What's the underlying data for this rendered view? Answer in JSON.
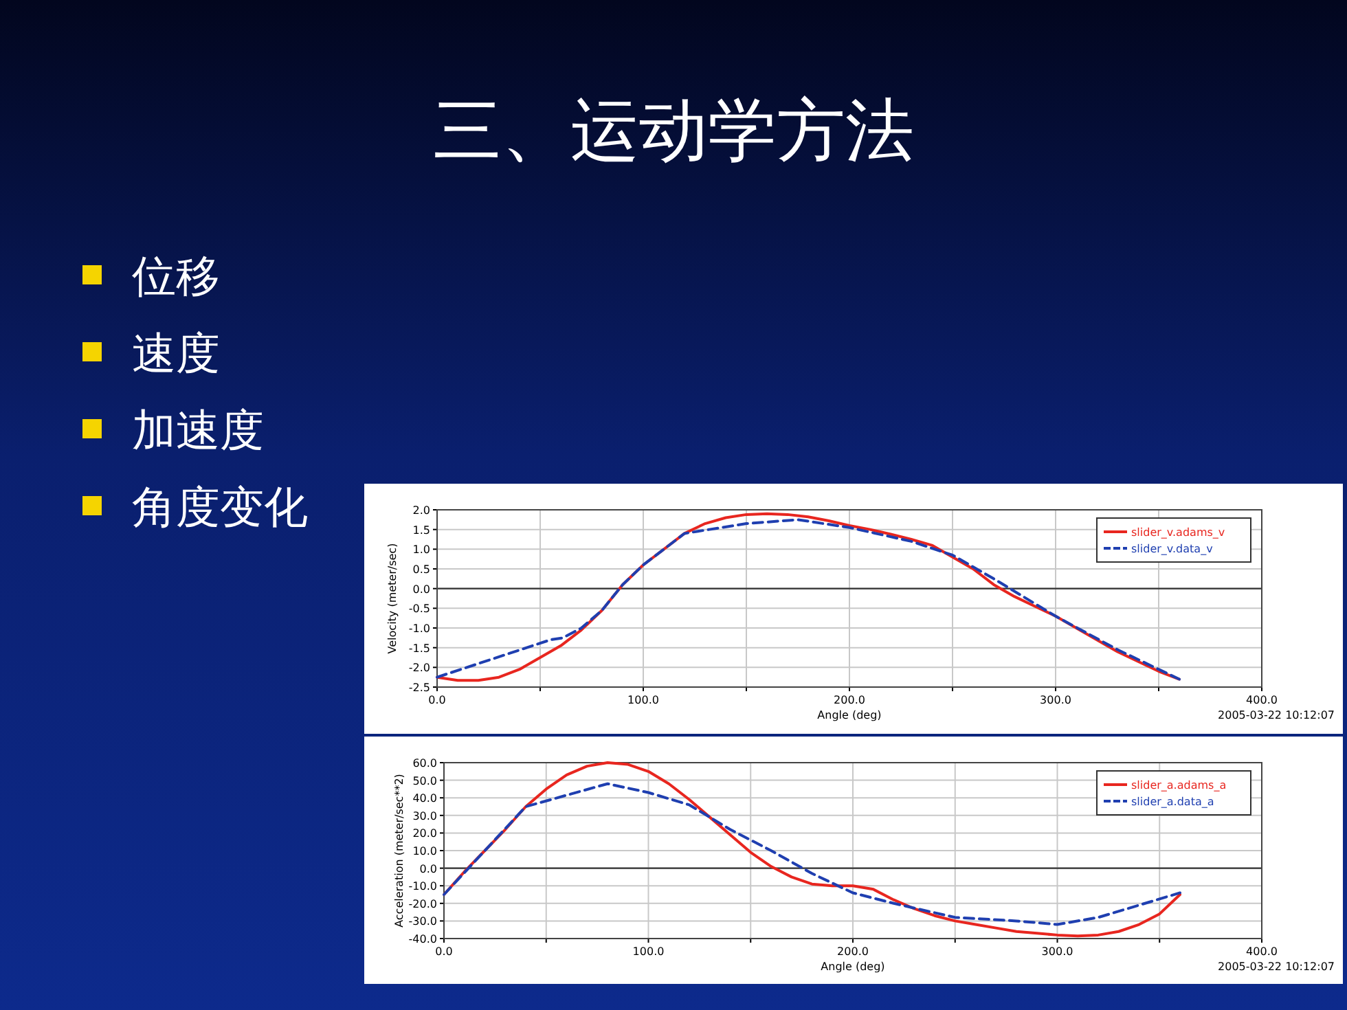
{
  "chart_data": [
    {
      "type": "other",
      "title": "三、运动学方法",
      "annotations": [
        "位移",
        "速度",
        "加速度",
        "角度变化"
      ]
    },
    {
      "type": "line",
      "xlabel": "Angle (deg)",
      "ylabel": "Velocity (meter/sec)",
      "annotations": [
        "2005-03-22 10:12:07"
      ],
      "x": [
        0,
        10,
        20,
        30,
        40,
        50,
        60,
        70,
        80,
        90,
        100,
        110,
        120,
        130,
        140,
        150,
        160,
        170,
        180,
        190,
        200,
        210,
        220,
        230,
        240,
        250,
        260,
        270,
        280,
        290,
        300,
        310,
        320,
        330,
        340,
        350,
        360
      ],
      "series": [
        {
          "name": "slider_v.adams_v",
          "color": "#e8261f",
          "line_style": "solid",
          "values": [
            -2.25,
            -2.33,
            -2.33,
            -2.25,
            -2.05,
            -1.75,
            -1.45,
            -1.05,
            -0.55,
            0.1,
            0.6,
            1.0,
            1.4,
            1.65,
            1.8,
            1.88,
            1.9,
            1.88,
            1.82,
            1.72,
            1.6,
            1.5,
            1.38,
            1.25,
            1.1,
            0.8,
            0.5,
            0.1,
            -0.2,
            -0.45,
            -0.7,
            -1.0,
            -1.3,
            -1.6,
            -1.85,
            -2.1,
            -2.3
          ]
        },
        {
          "name": "slider_v.data_v",
          "color": "#1f3fb0",
          "line_style": "dashed",
          "x": [
            0,
            55,
            61,
            70,
            80,
            90,
            100,
            110,
            120,
            150,
            175,
            200,
            230,
            250,
            270,
            300,
            330,
            360
          ],
          "values": [
            -2.25,
            -1.3,
            -1.25,
            -1.0,
            -0.55,
            0.1,
            0.6,
            1.0,
            1.4,
            1.65,
            1.75,
            1.55,
            1.2,
            0.85,
            0.25,
            -0.7,
            -1.55,
            -2.3
          ]
        }
      ],
      "xlim": [
        0,
        400
      ],
      "ylim": [
        -2.5,
        2
      ],
      "xticks": [
        {
          "value": 0,
          "label": "0.0"
        },
        {
          "value": 50,
          "label": null
        },
        {
          "value": 100,
          "label": "100.0"
        },
        {
          "value": 150,
          "label": null
        },
        {
          "value": 200,
          "label": "200.0"
        },
        {
          "value": 250,
          "label": null
        },
        {
          "value": 300,
          "label": "300.0"
        },
        {
          "value": 350,
          "label": null
        },
        {
          "value": 400,
          "label": "400.0"
        }
      ],
      "yticks": [
        {
          "value": 2,
          "label": "2.0"
        },
        {
          "value": 1.5,
          "label": "1.5"
        },
        {
          "value": 1,
          "label": "1.0"
        },
        {
          "value": 0.5,
          "label": "0.5"
        },
        {
          "value": 0,
          "label": "0.0"
        },
        {
          "value": -0.5,
          "label": "-0.5"
        },
        {
          "value": -1,
          "label": "-1.0"
        },
        {
          "value": -1.5,
          "label": "-1.5"
        },
        {
          "value": -2,
          "label": "-2.0"
        },
        {
          "value": -2.5,
          "label": "-2.5"
        }
      ],
      "grid": true,
      "legend": "top right",
      "ref_lines": [
        {
          "axis": "y",
          "value": 0,
          "color": "#333333"
        }
      ]
    },
    {
      "type": "line",
      "xlabel": "Angle (deg)",
      "ylabel": "Acceleration (meter/sec**2)",
      "annotations": [
        "2005-03-22 10:12:07"
      ],
      "x": [
        0,
        10,
        20,
        30,
        40,
        50,
        60,
        70,
        80,
        90,
        100,
        110,
        120,
        130,
        140,
        150,
        160,
        170,
        180,
        190,
        200,
        210,
        220,
        230,
        240,
        250,
        260,
        270,
        280,
        290,
        300,
        310,
        320,
        330,
        340,
        350,
        360
      ],
      "series": [
        {
          "name": "slider_a.adams_a",
          "color": "#e8261f",
          "line_style": "solid",
          "values": [
            -15,
            -2,
            10,
            22,
            35,
            45,
            53,
            58,
            60,
            59,
            55,
            48,
            39,
            29,
            19,
            9,
            1,
            -5,
            -9,
            -10,
            -10,
            -12,
            -18,
            -23,
            -27,
            -30,
            -32,
            -34,
            -36,
            -37,
            -38,
            -38.5,
            -38,
            -36,
            -32,
            -26,
            -15
          ]
        },
        {
          "name": "slider_a.data_a",
          "color": "#1f3fb0",
          "line_style": "dashed",
          "x": [
            0,
            20,
            40,
            80,
            100,
            120,
            140,
            160,
            180,
            200,
            220,
            250,
            280,
            300,
            320,
            340,
            360
          ],
          "values": [
            -15,
            10,
            35,
            48,
            43,
            36,
            22,
            10,
            -3,
            -14,
            -20,
            -28,
            -30,
            -32,
            -28,
            -21,
            -14
          ]
        }
      ],
      "xlim": [
        0,
        400
      ],
      "ylim": [
        -40,
        60
      ],
      "xticks": [
        {
          "value": 0,
          "label": "0.0"
        },
        {
          "value": 50,
          "label": null
        },
        {
          "value": 100,
          "label": "100.0"
        },
        {
          "value": 150,
          "label": null
        },
        {
          "value": 200,
          "label": "200.0"
        },
        {
          "value": 250,
          "label": null
        },
        {
          "value": 300,
          "label": "300.0"
        },
        {
          "value": 350,
          "label": null
        },
        {
          "value": 400,
          "label": "400.0"
        }
      ],
      "yticks": [
        {
          "value": 60,
          "label": "60.0"
        },
        {
          "value": 50,
          "label": "50.0"
        },
        {
          "value": 40,
          "label": "40.0"
        },
        {
          "value": 30,
          "label": "30.0"
        },
        {
          "value": 20,
          "label": "20.0"
        },
        {
          "value": 10,
          "label": "10.0"
        },
        {
          "value": 0,
          "label": "0.0"
        },
        {
          "value": -10,
          "label": "-10.0"
        },
        {
          "value": -20,
          "label": "-20.0"
        },
        {
          "value": -30,
          "label": "-30.0"
        },
        {
          "value": -40,
          "label": "-40.0"
        }
      ],
      "grid": true,
      "legend": "top right",
      "ref_lines": [
        {
          "axis": "y",
          "value": 0,
          "color": "#333333"
        }
      ]
    }
  ]
}
